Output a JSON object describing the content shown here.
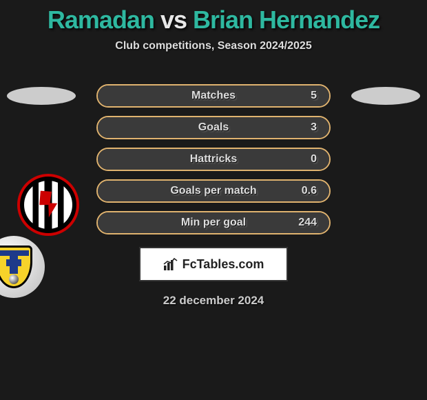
{
  "title": {
    "player1": "Ramadan",
    "vs": "vs",
    "player2": "Brian Hernandez",
    "color1": "#2eb8a0",
    "color_vs": "#e8e8e8",
    "color2": "#2eb8a0"
  },
  "subtitle": "Club competitions, Season 2024/2025",
  "stats": {
    "border_color": "#e0b36f",
    "bar_bg": "#3a3a3a",
    "rows": [
      {
        "label": "Matches",
        "value": "5",
        "bar_pct": 100
      },
      {
        "label": "Goals",
        "value": "3",
        "bar_pct": 100
      },
      {
        "label": "Hattricks",
        "value": "0",
        "bar_pct": 100
      },
      {
        "label": "Goals per match",
        "value": "0.6",
        "bar_pct": 100
      },
      {
        "label": "Min per goal",
        "value": "244",
        "bar_pct": 100
      }
    ]
  },
  "brand": "FcTables.com",
  "date": "22 december 2024",
  "clubs": {
    "left": {
      "name": "Al-Jazira Club"
    },
    "right": {
      "name": "NK Inter Zapresic"
    }
  }
}
